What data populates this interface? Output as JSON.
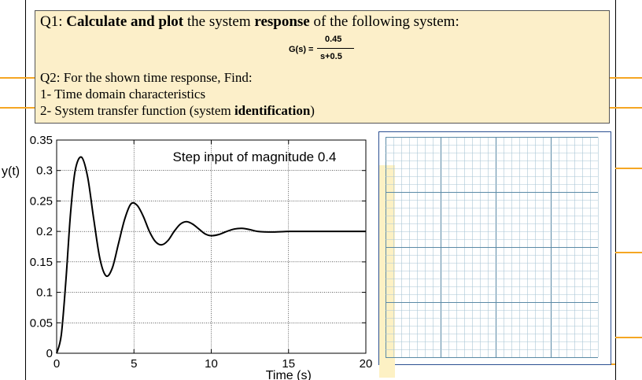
{
  "q1": {
    "prefix": "Q1: ",
    "bold1": "Calculate and plot",
    "mid1": " the system ",
    "bold2": "response",
    "suffix": " of the following system:"
  },
  "transfer_function": {
    "lhs": "G(s) =",
    "numerator": "0.45",
    "denominator": "s+0.5"
  },
  "q2": {
    "heading": "Q2: For the shown time response, Find:",
    "item1": "1-  Time domain characteristics",
    "item2_prefix": "2-  System transfer function (system ",
    "item2_bold": "identification",
    "item2_suffix": ")"
  },
  "chart_data": {
    "type": "line",
    "title": "Step input of magnitude 0.4",
    "xlabel": "Time (s)",
    "ylabel": "y(t)",
    "xlim": [
      0,
      20
    ],
    "ylim": [
      0,
      0.35
    ],
    "xticks": [
      0,
      5,
      10,
      15,
      20
    ],
    "yticks": [
      0,
      0.05,
      0.1,
      0.15,
      0.2,
      0.25,
      0.3,
      0.35
    ],
    "ytick_labels": [
      "0",
      "0.05",
      "0.1",
      "0.15",
      "0.2",
      "0.25",
      "0.3",
      "0.35"
    ],
    "xtick_labels": [
      "0",
      "5",
      "10",
      "15",
      "20"
    ],
    "grid": true,
    "series": [
      {
        "x": [
          0,
          0.3,
          0.6,
          0.9,
          1.2,
          1.6,
          2.0,
          2.4,
          2.8,
          3.2,
          3.6,
          4.0,
          4.4,
          4.8,
          5.2,
          5.6,
          6.0,
          6.4,
          6.8,
          7.2,
          7.6,
          8.0,
          8.4,
          8.8,
          9.2,
          9.6,
          10.0,
          10.5,
          11.0,
          11.5,
          12.0,
          12.5,
          13.0,
          14.0,
          15.0,
          16.0,
          17.0,
          18.0,
          19.0,
          20.0
        ],
        "y": [
          0,
          0.03,
          0.12,
          0.23,
          0.3,
          0.322,
          0.29,
          0.22,
          0.155,
          0.127,
          0.14,
          0.18,
          0.22,
          0.245,
          0.243,
          0.225,
          0.2,
          0.183,
          0.178,
          0.185,
          0.2,
          0.212,
          0.216,
          0.212,
          0.204,
          0.196,
          0.193,
          0.195,
          0.2,
          0.204,
          0.205,
          0.203,
          0.2,
          0.199,
          0.2,
          0.2,
          0.2,
          0.2,
          0.2,
          0.2
        ]
      }
    ]
  }
}
